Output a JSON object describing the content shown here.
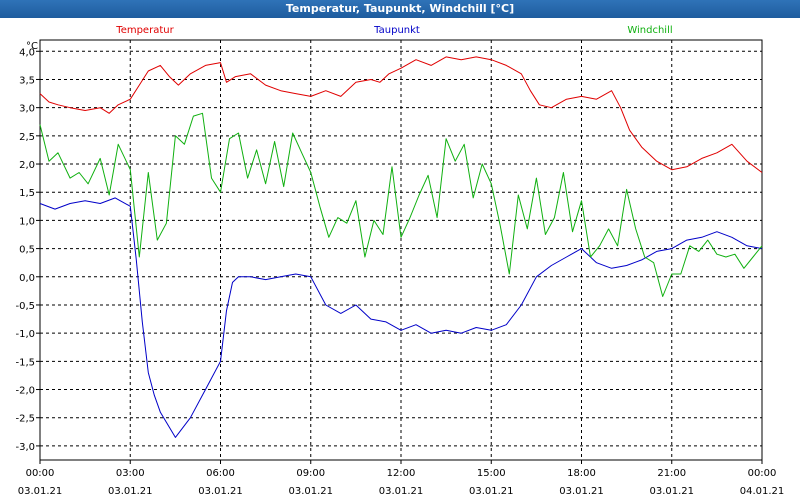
{
  "title": "Temperatur, Taupunkt, Windchill [°C]",
  "chart_data": {
    "type": "line",
    "ylabel": "°C",
    "ylim": [
      -3.25,
      4.2
    ],
    "yticks": [
      4.0,
      3.5,
      3.0,
      2.5,
      2.0,
      1.5,
      1.0,
      0.5,
      0.0,
      -0.5,
      -1.0,
      -1.5,
      -2.0,
      -2.5,
      -3.0
    ],
    "ytick_labels": [
      "4,0",
      "3,5",
      "3,0",
      "2,5",
      "2,0",
      "1,5",
      "1,0",
      "0,5",
      "0,0",
      "-0,5",
      "-1,0",
      "-1,5",
      "-2,0",
      "-2,5",
      "-3,0"
    ],
    "xlim": [
      0,
      24
    ],
    "xticks": [
      {
        "x": 0,
        "time": "00:00",
        "date": "03.01.21"
      },
      {
        "x": 3,
        "time": "03:00",
        "date": "03.01.21"
      },
      {
        "x": 6,
        "time": "06:00",
        "date": "03.01.21"
      },
      {
        "x": 9,
        "time": "09:00",
        "date": "03.01.21"
      },
      {
        "x": 12,
        "time": "12:00",
        "date": "03.01.21"
      },
      {
        "x": 15,
        "time": "15:00",
        "date": "03.01.21"
      },
      {
        "x": 18,
        "time": "18:00",
        "date": "03.01.21"
      },
      {
        "x": 21,
        "time": "21:00",
        "date": "03.01.21"
      },
      {
        "x": 24,
        "time": "00:00",
        "date": "04.01.21"
      }
    ],
    "grid": true,
    "series": [
      {
        "name": "Temperatur",
        "color": "#e00000",
        "x": [
          0,
          0.3,
          0.6,
          1,
          1.5,
          2,
          2.3,
          2.6,
          3,
          3.3,
          3.6,
          4,
          4.3,
          4.6,
          5,
          5.5,
          6,
          6.2,
          6.5,
          7,
          7.5,
          8,
          8.5,
          9,
          9.5,
          10,
          10.5,
          11,
          11.3,
          11.6,
          12,
          12.5,
          13,
          13.5,
          14,
          14.5,
          15,
          15.5,
          16,
          16.3,
          16.6,
          17,
          17.5,
          18,
          18.5,
          19,
          19.3,
          19.6,
          20,
          20.5,
          21,
          21.5,
          22,
          22.5,
          23,
          23.5,
          24
        ],
        "y": [
          3.25,
          3.1,
          3.05,
          3.0,
          2.95,
          3.0,
          2.9,
          3.05,
          3.15,
          3.4,
          3.65,
          3.75,
          3.55,
          3.4,
          3.6,
          3.75,
          3.8,
          3.45,
          3.55,
          3.6,
          3.4,
          3.3,
          3.25,
          3.2,
          3.3,
          3.2,
          3.45,
          3.5,
          3.45,
          3.6,
          3.7,
          3.85,
          3.75,
          3.9,
          3.85,
          3.9,
          3.85,
          3.75,
          3.6,
          3.3,
          3.05,
          3.0,
          3.15,
          3.2,
          3.15,
          3.3,
          3.0,
          2.6,
          2.3,
          2.05,
          1.9,
          1.95,
          2.1,
          2.2,
          2.35,
          2.05,
          1.85
        ]
      },
      {
        "name": "Taupunkt",
        "color": "#0000c8",
        "x": [
          0,
          0.5,
          1,
          1.5,
          2,
          2.5,
          3,
          3.2,
          3.4,
          3.6,
          3.8,
          4,
          4.5,
          5,
          5.5,
          6,
          6.2,
          6.4,
          6.6,
          7,
          7.5,
          8,
          8.5,
          9,
          9.5,
          10,
          10.5,
          11,
          11.5,
          12,
          12.5,
          13,
          13.5,
          14,
          14.5,
          15,
          15.5,
          16,
          16.5,
          17,
          17.5,
          18,
          18.5,
          19,
          19.5,
          20,
          20.5,
          21,
          21.5,
          22,
          22.5,
          23,
          23.5,
          24
        ],
        "y": [
          1.3,
          1.2,
          1.3,
          1.35,
          1.3,
          1.4,
          1.25,
          0.3,
          -0.8,
          -1.7,
          -2.1,
          -2.4,
          -2.85,
          -2.5,
          -2.0,
          -1.5,
          -0.6,
          -0.1,
          0.0,
          0.0,
          -0.05,
          0.0,
          0.05,
          0.0,
          -0.5,
          -0.65,
          -0.5,
          -0.75,
          -0.8,
          -0.95,
          -0.85,
          -1.0,
          -0.95,
          -1.0,
          -0.9,
          -0.95,
          -0.85,
          -0.5,
          0.0,
          0.2,
          0.35,
          0.5,
          0.25,
          0.15,
          0.2,
          0.3,
          0.45,
          0.5,
          0.65,
          0.7,
          0.8,
          0.7,
          0.55,
          0.5
        ]
      },
      {
        "name": "Windchill",
        "color": "#10b010",
        "x": [
          0,
          0.3,
          0.6,
          1,
          1.3,
          1.6,
          2,
          2.3,
          2.6,
          3,
          3.3,
          3.6,
          3.9,
          4.2,
          4.5,
          4.8,
          5.1,
          5.4,
          5.7,
          6,
          6.3,
          6.6,
          6.9,
          7.2,
          7.5,
          7.8,
          8.1,
          8.4,
          8.7,
          9,
          9.3,
          9.6,
          9.9,
          10.2,
          10.5,
          10.8,
          11.1,
          11.4,
          11.7,
          12,
          12.3,
          12.6,
          12.9,
          13.2,
          13.5,
          13.8,
          14.1,
          14.4,
          14.7,
          15,
          15.3,
          15.6,
          15.9,
          16.2,
          16.5,
          16.8,
          17.1,
          17.4,
          17.7,
          18,
          18.3,
          18.6,
          18.9,
          19.2,
          19.5,
          19.8,
          20.1,
          20.4,
          20.7,
          21,
          21.3,
          21.6,
          21.9,
          22.2,
          22.5,
          22.8,
          23.1,
          23.4,
          23.7,
          24
        ],
        "y": [
          2.7,
          2.05,
          2.2,
          1.75,
          1.85,
          1.65,
          2.1,
          1.45,
          2.35,
          1.9,
          0.35,
          1.85,
          0.65,
          0.95,
          2.5,
          2.35,
          2.85,
          2.9,
          1.75,
          1.5,
          2.45,
          2.55,
          1.75,
          2.25,
          1.65,
          2.4,
          1.6,
          2.55,
          2.2,
          1.85,
          1.25,
          0.7,
          1.05,
          0.95,
          1.35,
          0.35,
          1.0,
          0.75,
          1.95,
          0.7,
          1.05,
          1.45,
          1.8,
          1.05,
          2.45,
          2.05,
          2.35,
          1.4,
          2.0,
          1.65,
          0.9,
          0.05,
          1.45,
          0.85,
          1.75,
          0.75,
          1.05,
          1.85,
          0.8,
          1.35,
          0.35,
          0.55,
          0.85,
          0.55,
          1.55,
          0.85,
          0.35,
          0.25,
          -0.35,
          0.05,
          0.05,
          0.55,
          0.45,
          0.65,
          0.4,
          0.35,
          0.4,
          0.15,
          0.35,
          0.55
        ]
      }
    ]
  }
}
